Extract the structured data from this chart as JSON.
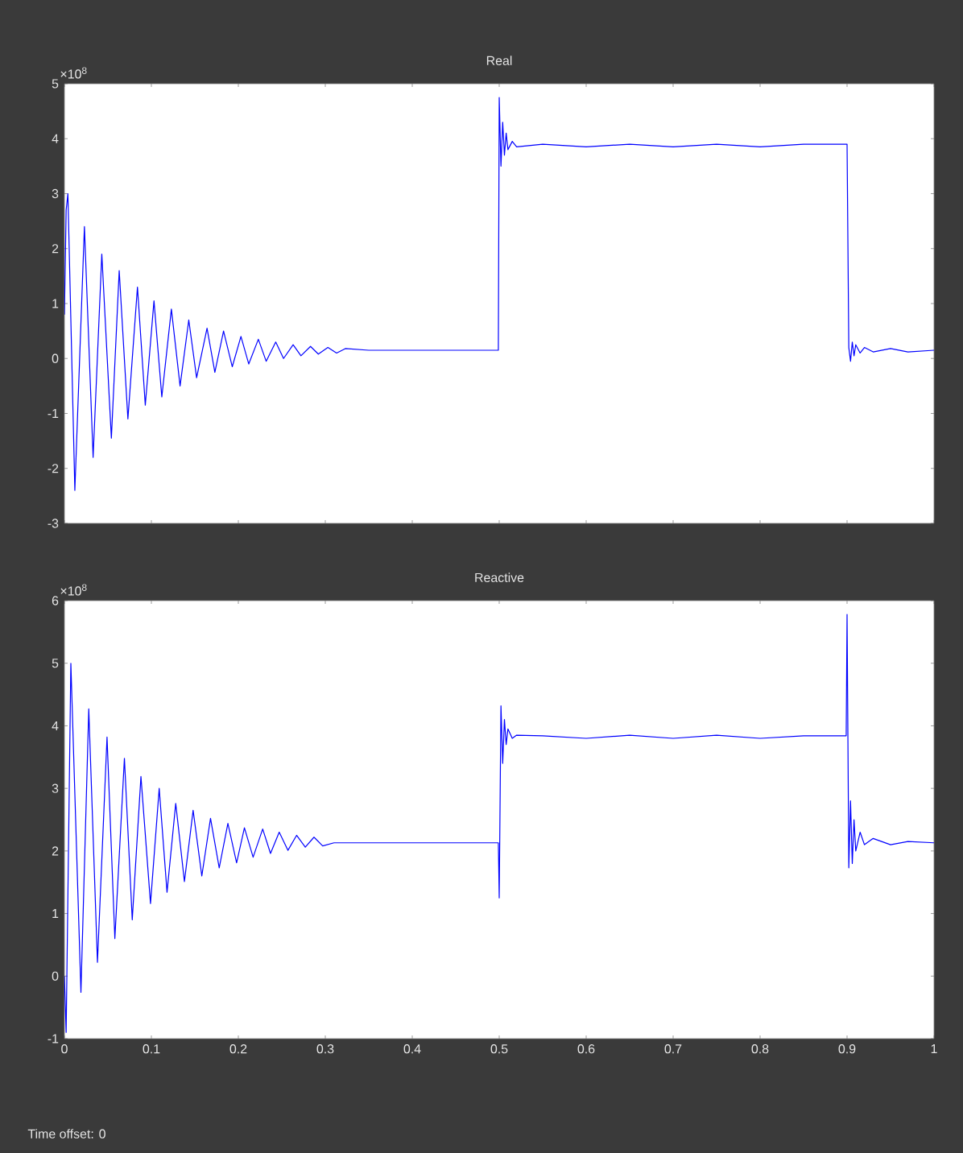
{
  "chart_data": [
    {
      "type": "line",
      "title": "Real",
      "color": "#0000ff",
      "xlim": [
        0,
        1
      ],
      "ylim": [
        -3,
        5
      ],
      "xticks": [
        0,
        0.1,
        0.2,
        0.3,
        0.4,
        0.5,
        0.6,
        0.7,
        0.8,
        0.9,
        1
      ],
      "yticks": [
        -3,
        -2,
        -1,
        0,
        1,
        2,
        3,
        4,
        5
      ],
      "tick_labels": "y",
      "annotations": [
        "×10$^{8}$"
      ],
      "x": [
        0,
        0.002,
        0.004,
        0.012,
        0.023,
        0.033,
        0.043,
        0.054,
        0.063,
        0.073,
        0.084,
        0.093,
        0.103,
        0.112,
        0.123,
        0.133,
        0.143,
        0.152,
        0.164,
        0.173,
        0.183,
        0.193,
        0.203,
        0.212,
        0.223,
        0.232,
        0.243,
        0.252,
        0.263,
        0.272,
        0.283,
        0.292,
        0.303,
        0.313,
        0.323,
        0.35,
        0.4,
        0.45,
        0.499,
        0.5,
        0.502,
        0.504,
        0.506,
        0.508,
        0.51,
        0.515,
        0.52,
        0.55,
        0.6,
        0.65,
        0.7,
        0.75,
        0.8,
        0.85,
        0.9,
        0.902,
        0.904,
        0.906,
        0.908,
        0.91,
        0.915,
        0.92,
        0.93,
        0.95,
        0.97,
        1.0
      ],
      "values": [
        0.8,
        2.7,
        3.0,
        -2.4,
        2.4,
        -1.8,
        1.9,
        -1.45,
        1.6,
        -1.1,
        1.3,
        -0.85,
        1.05,
        -0.7,
        0.9,
        -0.5,
        0.7,
        -0.35,
        0.55,
        -0.25,
        0.5,
        -0.15,
        0.4,
        -0.1,
        0.35,
        -0.05,
        0.3,
        0.0,
        0.25,
        0.05,
        0.22,
        0.08,
        0.2,
        0.1,
        0.18,
        0.15,
        0.15,
        0.15,
        0.15,
        4.75,
        3.5,
        4.3,
        3.7,
        4.1,
        3.8,
        3.95,
        3.85,
        3.9,
        3.85,
        3.9,
        3.85,
        3.9,
        3.85,
        3.9,
        3.9,
        0.2,
        -0.05,
        0.3,
        0.05,
        0.25,
        0.1,
        0.2,
        0.12,
        0.18,
        0.12,
        0.15
      ]
    },
    {
      "type": "line",
      "title": "Reactive",
      "color": "#0000ff",
      "xlim": [
        0,
        1
      ],
      "ylim": [
        -1,
        6
      ],
      "xticks": [
        0,
        0.1,
        0.2,
        0.3,
        0.4,
        0.5,
        0.6,
        0.7,
        0.8,
        0.9,
        1
      ],
      "yticks": [
        -1,
        0,
        1,
        2,
        3,
        4,
        5,
        6
      ],
      "annotations": [
        "×10$^{8}$",
        "Time offset:  0"
      ],
      "x": [
        0,
        0.002,
        0.0074,
        0.019,
        0.028,
        0.038,
        0.049,
        0.058,
        0.069,
        0.078,
        0.088,
        0.099,
        0.109,
        0.118,
        0.128,
        0.138,
        0.148,
        0.158,
        0.168,
        0.178,
        0.188,
        0.198,
        0.207,
        0.217,
        0.228,
        0.237,
        0.247,
        0.257,
        0.267,
        0.277,
        0.287,
        0.297,
        0.31,
        0.35,
        0.4,
        0.45,
        0.499,
        0.5,
        0.502,
        0.504,
        0.506,
        0.508,
        0.51,
        0.515,
        0.52,
        0.55,
        0.6,
        0.65,
        0.7,
        0.75,
        0.8,
        0.85,
        0.899,
        0.9,
        0.902,
        0.904,
        0.906,
        0.908,
        0.91,
        0.915,
        0.92,
        0.93,
        0.95,
        0.97,
        1.0
      ],
      "values": [
        0,
        -0.9,
        5.0,
        -0.26,
        4.27,
        0.22,
        3.82,
        0.6,
        3.48,
        0.9,
        3.19,
        1.16,
        3.0,
        1.34,
        2.76,
        1.51,
        2.65,
        1.6,
        2.52,
        1.73,
        2.44,
        1.81,
        2.37,
        1.9,
        2.35,
        1.96,
        2.3,
        2.01,
        2.25,
        2.06,
        2.22,
        2.08,
        2.13,
        2.13,
        2.13,
        2.13,
        2.13,
        1.25,
        4.32,
        3.4,
        4.1,
        3.7,
        3.95,
        3.8,
        3.85,
        3.84,
        3.8,
        3.85,
        3.8,
        3.85,
        3.8,
        3.84,
        3.84,
        5.78,
        1.73,
        2.8,
        1.8,
        2.5,
        2.0,
        2.3,
        2.1,
        2.2,
        2.1,
        2.15,
        2.13
      ]
    }
  ]
}
